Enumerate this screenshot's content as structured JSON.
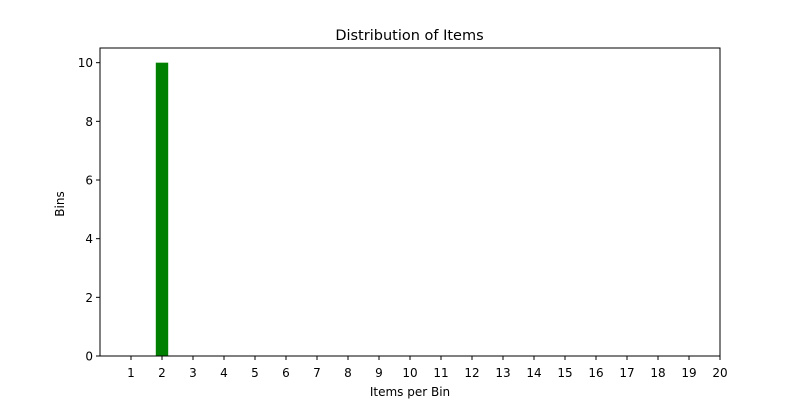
{
  "chart_data": {
    "type": "bar",
    "title": "Distribution of Items",
    "xlabel": "Items per Bin",
    "ylabel": "Bins",
    "categories": [
      1,
      2,
      3,
      4,
      5,
      6,
      7,
      8,
      9,
      10,
      11,
      12,
      13,
      14,
      15,
      16,
      17,
      18,
      19,
      20
    ],
    "values": [
      0,
      10,
      0,
      0,
      0,
      0,
      0,
      0,
      0,
      0,
      0,
      0,
      0,
      0,
      0,
      0,
      0,
      0,
      0,
      0
    ],
    "xlim": [
      0,
      20
    ],
    "ylim": [
      0,
      10.5
    ],
    "yticks": [
      0,
      2,
      4,
      6,
      8,
      10
    ],
    "bar_color": "#008000",
    "grid": false,
    "legend": "none"
  }
}
